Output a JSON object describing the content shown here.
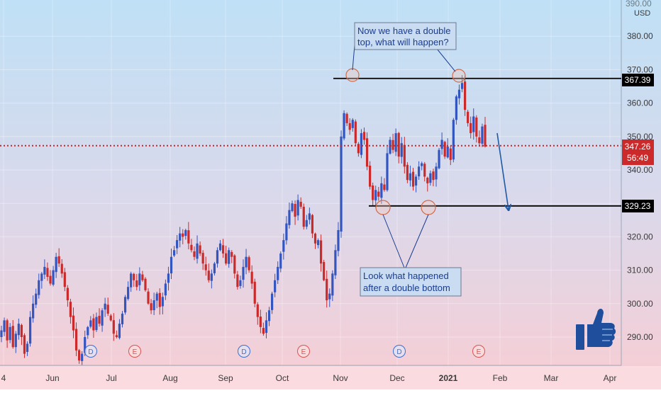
{
  "chart_data": {
    "type": "candlestick",
    "currency": "USD",
    "price_axis": {
      "ticks": [
        "290.00",
        "300.00",
        "310.00",
        "320.00",
        "330.00",
        "340.00",
        "350.00",
        "360.00",
        "370.00",
        "380.00",
        "390.00"
      ],
      "range": [
        280.5,
        393.5
      ]
    },
    "time_axis": {
      "labels": [
        "4",
        "Jun",
        "Jul",
        "Aug",
        "Sep",
        "Oct",
        "Nov",
        "Dec",
        "2021",
        "Feb",
        "Mar",
        "Apr"
      ],
      "bold_label": "2021"
    },
    "levels": [
      {
        "name": "double-top-level",
        "price": 367.39,
        "label": "367.39",
        "style": "solid",
        "color": "#000000"
      },
      {
        "name": "double-bottom-level",
        "price": 329.23,
        "label": "329.23",
        "style": "solid",
        "color": "#000000"
      },
      {
        "name": "last-price-level",
        "price": 347.26,
        "label": "347.26",
        "style": "dotted",
        "color": "#cc2222"
      }
    ],
    "countdown_label": "56:49",
    "event_markers": [
      "D",
      "E",
      "D",
      "E",
      "D",
      "E"
    ],
    "annotations": [
      {
        "name": "double-top-note",
        "lines": [
          "Now we have a double",
          "top, what will happen?"
        ]
      },
      {
        "name": "double-bottom-note",
        "lines": [
          "Look what happened",
          "after a double bottom"
        ]
      }
    ],
    "closes": [
      292,
      295,
      289,
      293,
      287,
      291,
      294,
      290,
      285,
      288,
      296,
      300,
      303,
      307,
      309,
      311,
      308,
      306,
      310,
      314,
      312,
      309,
      305,
      301,
      296,
      292,
      286,
      283,
      285,
      290,
      293,
      295,
      292,
      296,
      294,
      298,
      300,
      297,
      295,
      291,
      290,
      294,
      297,
      302,
      305,
      309,
      307,
      305,
      309,
      307,
      304,
      300,
      298,
      301,
      303,
      299,
      302,
      306,
      309,
      314,
      316,
      319,
      321,
      320,
      322,
      318,
      316,
      314,
      318,
      315,
      312,
      310,
      307,
      309,
      312,
      316,
      318,
      315,
      312,
      316,
      314,
      309,
      305,
      307,
      311,
      314,
      310,
      306,
      300,
      296,
      293,
      291,
      295,
      298,
      303,
      307,
      311,
      315,
      319,
      324,
      328,
      330,
      326,
      331,
      329,
      323,
      325,
      327,
      321,
      318,
      319,
      312,
      307,
      301,
      303,
      309,
      316,
      322,
      350,
      357,
      354,
      352,
      355,
      348,
      345,
      351,
      349,
      341,
      335,
      331,
      334,
      332,
      336,
      334,
      345,
      349,
      346,
      351,
      344,
      348,
      341,
      337,
      339,
      335,
      338,
      341,
      342,
      338,
      336,
      339,
      337,
      341,
      346,
      349,
      344,
      347,
      343,
      355,
      362,
      364,
      366,
      358,
      354,
      351,
      356,
      350,
      348,
      353,
      347
    ]
  },
  "colors": {
    "up": "#3355c0",
    "down": "#cc2a2a",
    "annotation_text": "#1a3d8f",
    "arrow": "#1f5aa6",
    "thumb": "#1f4f9c"
  },
  "icons": {
    "thumb": "thumbs-up-icon"
  }
}
